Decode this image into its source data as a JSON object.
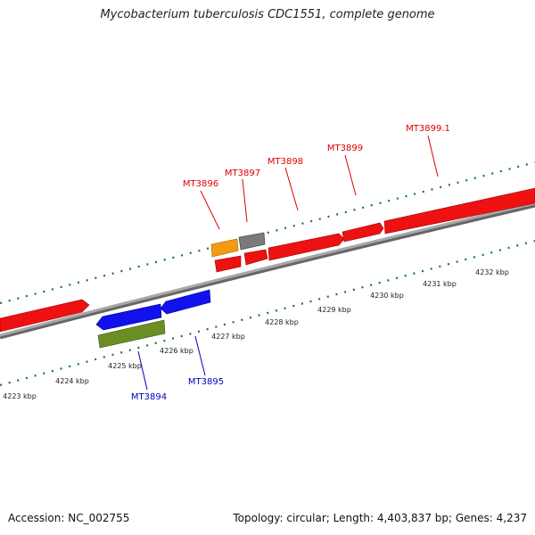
{
  "title": "Mycobacterium tuberculosis CDC1551, complete genome",
  "accession_text": "Accession: NC_002755",
  "summary_text": "Topology: circular; Length: 4,403,837 bp; Genes: 4,237",
  "scale_labels": [
    "4223 kbp",
    "4224 kbp",
    "4225 kbp",
    "4226 kbp",
    "4227 kbp",
    "4228 kbp",
    "4229 kbp",
    "4230 kbp",
    "4231 kbp",
    "4232 kbp"
  ],
  "gene_labels": {
    "forward": [
      "MT3896",
      "MT3897",
      "MT3898",
      "MT3899",
      "MT3899.1"
    ],
    "reverse": [
      "MT3894",
      "MT3895"
    ]
  },
  "colors": {
    "forward_label": "#dd0000",
    "reverse_label": "#0000bb",
    "forward_gene": "#ee1111",
    "reverse_gene": "#1111ee",
    "rrna_like": "#6b8e23",
    "orange_feature": "#f29a12",
    "gray_feature": "#7a7a7a",
    "backbone": "#888888",
    "tick": "#1a7a1a"
  }
}
